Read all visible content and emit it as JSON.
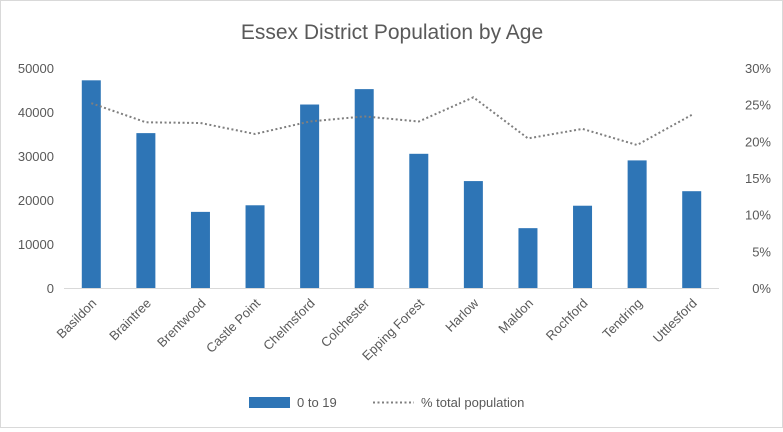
{
  "chart_data": {
    "type": "bar",
    "title": "Essex District Population by Age",
    "categories": [
      "Basildon",
      "Braintree",
      "Brentwood",
      "Castle Point",
      "Chelmsford",
      "Colchester",
      "Epping Forest",
      "Harlow",
      "Maldon",
      "Rochford",
      "Tendring",
      "Uttlesford"
    ],
    "series": [
      {
        "name": "0 to 19",
        "type": "bar",
        "axis": "left",
        "color": "#2e75b6",
        "values": [
          47200,
          35200,
          17300,
          18800,
          41700,
          45200,
          30500,
          24300,
          13600,
          18700,
          29000,
          22000
        ]
      },
      {
        "name": "% total population",
        "type": "line",
        "style": "dotted",
        "axis": "right",
        "color": "#7f7f7f",
        "values": [
          25.2,
          22.6,
          22.5,
          21.0,
          22.7,
          23.4,
          22.7,
          26.0,
          20.4,
          21.7,
          19.5,
          23.6
        ]
      }
    ],
    "ylim": [
      0,
      50000
    ],
    "y_ticks": [
      "0",
      "10000",
      "20000",
      "30000",
      "40000",
      "50000"
    ],
    "y2lim": [
      0,
      30
    ],
    "y2_ticks": [
      "0%",
      "5%",
      "10%",
      "15%",
      "20%",
      "25%",
      "30%"
    ],
    "gridlines": false,
    "legend_position": "bottom"
  }
}
